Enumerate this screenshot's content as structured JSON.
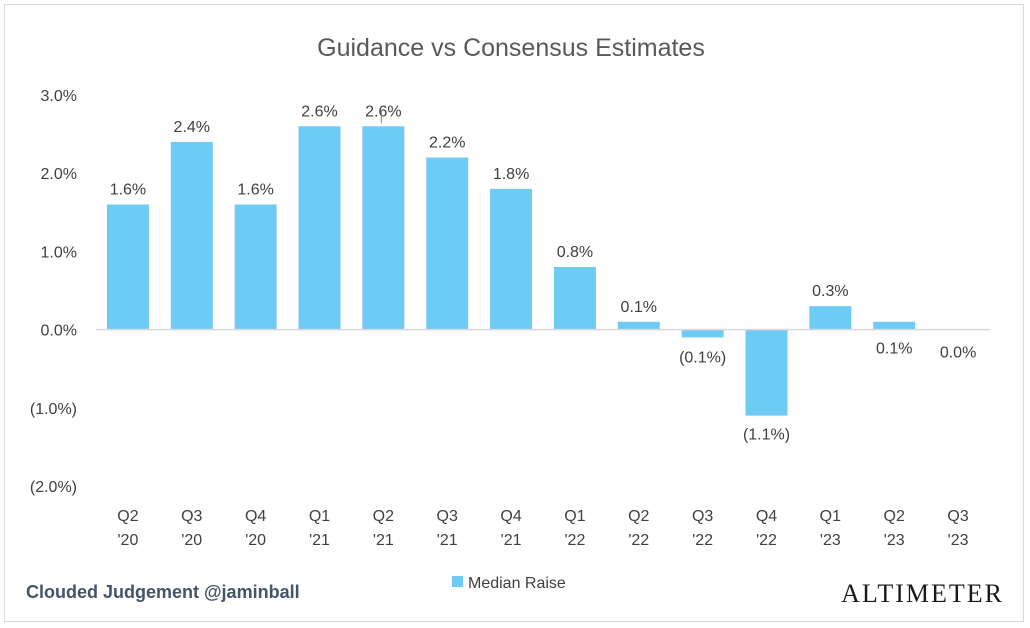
{
  "chart_data": {
    "type": "bar",
    "title": "Guidance vs Consensus Estimates",
    "categories": [
      [
        "Q2",
        "'20"
      ],
      [
        "Q3",
        "'20"
      ],
      [
        "Q4",
        "'20"
      ],
      [
        "Q1",
        "'21"
      ],
      [
        "Q2",
        "'21"
      ],
      [
        "Q3",
        "'21"
      ],
      [
        "Q4",
        "'21"
      ],
      [
        "Q1",
        "'22"
      ],
      [
        "Q2",
        "'22"
      ],
      [
        "Q3",
        "'22"
      ],
      [
        "Q4",
        "'22"
      ],
      [
        "Q1",
        "'23"
      ],
      [
        "Q2",
        "'23"
      ],
      [
        "Q3",
        "'23"
      ]
    ],
    "series": [
      {
        "name": "Median Raise",
        "color": "#6ecbf5",
        "values": [
          1.6,
          2.4,
          1.6,
          2.6,
          2.6,
          2.2,
          1.8,
          0.8,
          0.1,
          -0.1,
          -1.1,
          0.3,
          0.1,
          0.0
        ],
        "labels": [
          "1.6%",
          "2.4%",
          "1.6%",
          "2.6%",
          "2.6%",
          "2.2%",
          "1.8%",
          "0.8%",
          "0.1%",
          "(0.1%)",
          "(1.1%)",
          "0.3%",
          "0.1%",
          "0.0%"
        ]
      }
    ],
    "ylim": [
      -2.0,
      3.0
    ],
    "yticks": [
      3.0,
      2.0,
      1.0,
      0.0,
      -1.0,
      -2.0
    ],
    "ytick_labels": [
      "3.0%",
      "2.0%",
      "1.0%",
      "0.0%",
      "(1.0%)",
      "(2.0%)"
    ],
    "xlabel": "",
    "ylabel": "",
    "grid": false,
    "legend_position": "bottom-center"
  },
  "footer": {
    "credit": "Clouded Judgement @jaminball",
    "brand": "ALTIMETER"
  }
}
